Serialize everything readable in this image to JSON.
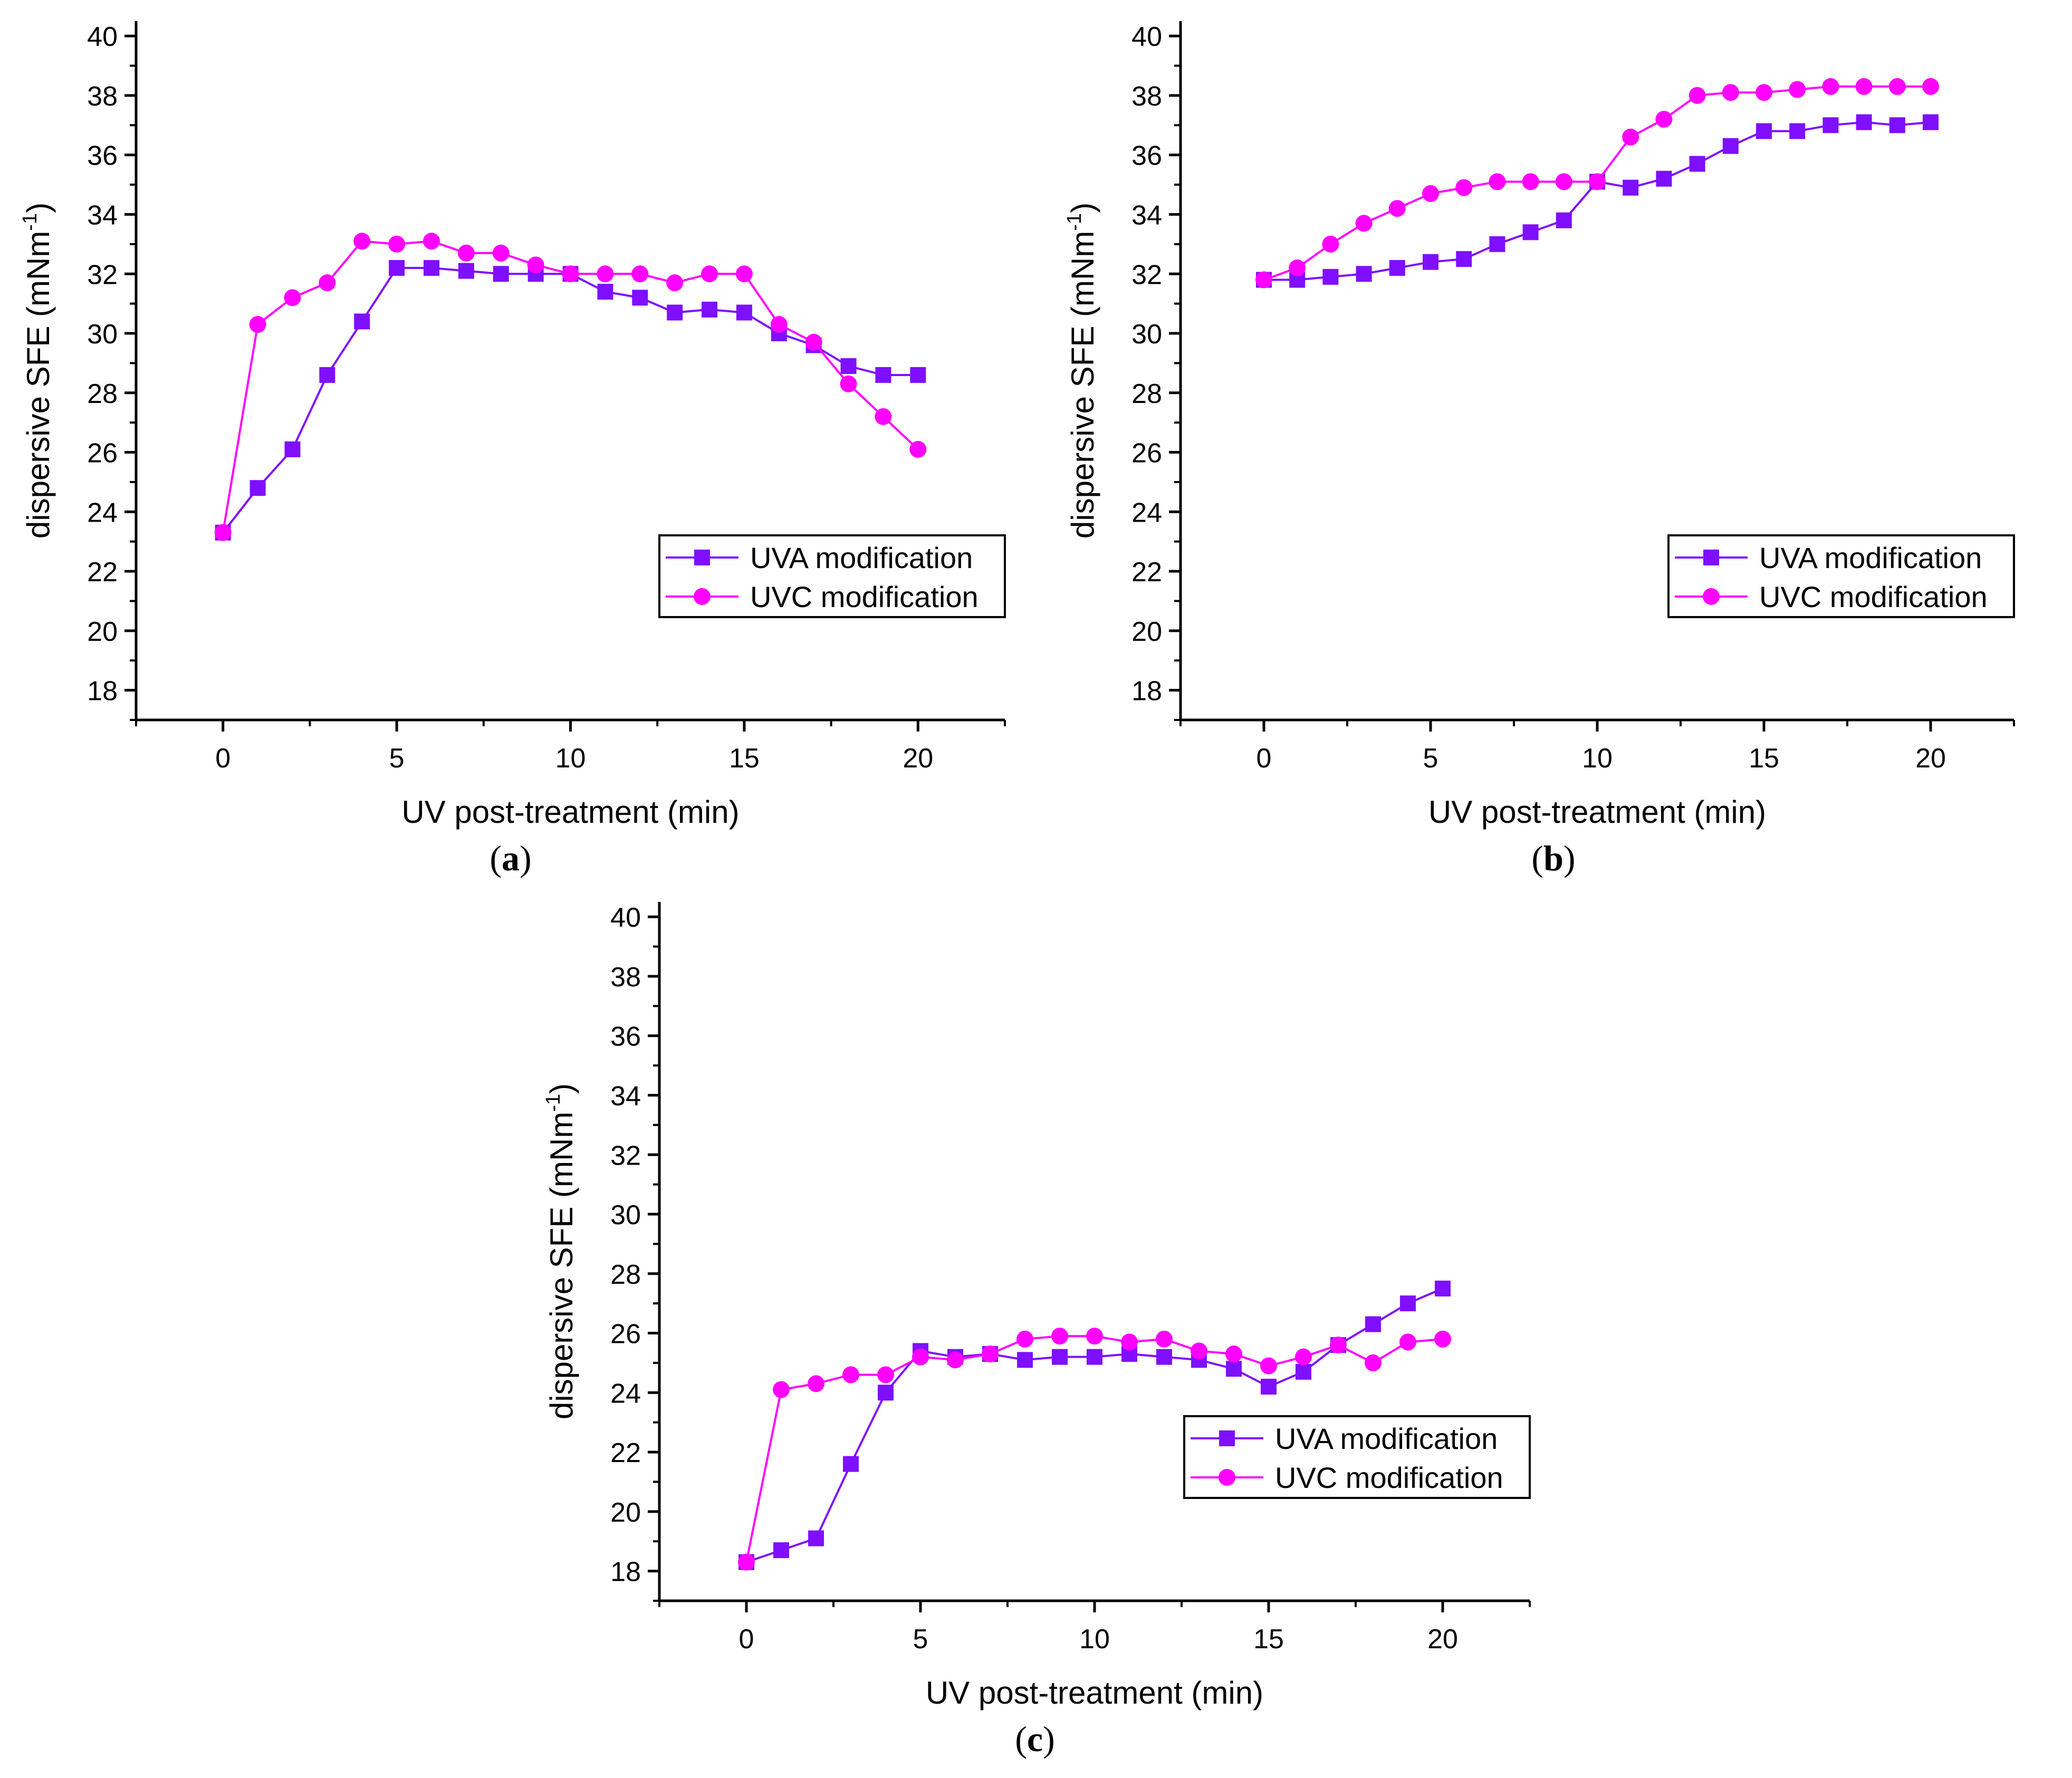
{
  "colors": {
    "uva": "#7f0fff",
    "uvc": "#ff00ff",
    "axis": "#000000"
  },
  "chart_data": [
    {
      "type": "line",
      "caption_letter": "a",
      "xlabel": "UV post-treatment (min)",
      "ylabel_main": "dispersive SFE (mNm",
      "ylabel_sup": "-1",
      "ylabel_close": ")",
      "xlim": [
        -2.5,
        22.5
      ],
      "ylim": [
        17,
        40.5
      ],
      "xticks": [
        0,
        5,
        10,
        15,
        20
      ],
      "yticks": [
        18,
        20,
        22,
        24,
        26,
        28,
        30,
        32,
        34,
        36,
        38,
        40
      ],
      "legend_position": "bottom-right",
      "x": [
        0,
        1,
        2,
        3,
        4,
        5,
        6,
        7,
        8,
        9,
        10,
        11,
        12,
        13,
        14,
        15,
        16,
        17,
        18,
        19,
        20
      ],
      "series": [
        {
          "name": "UVA modification",
          "marker": "square",
          "color_key": "uva",
          "values": [
            23.3,
            24.8,
            26.1,
            28.6,
            30.4,
            32.2,
            32.2,
            32.1,
            32.0,
            32.0,
            32.0,
            31.4,
            31.2,
            30.7,
            30.8,
            30.7,
            30.0,
            29.6,
            28.9,
            28.6,
            28.6
          ]
        },
        {
          "name": "UVC modification",
          "marker": "circle",
          "color_key": "uvc",
          "values": [
            23.3,
            30.3,
            31.2,
            31.7,
            33.1,
            33.0,
            33.1,
            32.7,
            32.7,
            32.3,
            32.0,
            32.0,
            32.0,
            31.7,
            32.0,
            32.0,
            30.3,
            29.7,
            28.3,
            27.2,
            26.1
          ]
        }
      ]
    },
    {
      "type": "line",
      "caption_letter": "b",
      "xlabel": "UV post-treatment (min)",
      "ylabel_main": "dispersive SFE (mNm",
      "ylabel_sup": "-1",
      "ylabel_close": ")",
      "xlim": [
        -2.5,
        22.5
      ],
      "ylim": [
        17,
        40.5
      ],
      "xticks": [
        0,
        5,
        10,
        15,
        20
      ],
      "yticks": [
        18,
        20,
        22,
        24,
        26,
        28,
        30,
        32,
        34,
        36,
        38,
        40
      ],
      "legend_position": "bottom-right",
      "x": [
        0,
        1,
        2,
        3,
        4,
        5,
        6,
        7,
        8,
        9,
        10,
        11,
        12,
        13,
        14,
        15,
        16,
        17,
        18,
        19,
        20
      ],
      "series": [
        {
          "name": "UVA modification",
          "marker": "square",
          "color_key": "uva",
          "values": [
            31.8,
            31.8,
            31.9,
            32.0,
            32.2,
            32.4,
            32.5,
            33.0,
            33.4,
            33.8,
            35.1,
            34.9,
            35.2,
            35.7,
            36.3,
            36.8,
            36.8,
            37.0,
            37.1,
            37.0,
            37.1
          ]
        },
        {
          "name": "UVC modification",
          "marker": "circle",
          "color_key": "uvc",
          "values": [
            31.8,
            32.2,
            33.0,
            33.7,
            34.2,
            34.7,
            34.9,
            35.1,
            35.1,
            35.1,
            35.1,
            36.6,
            37.2,
            38.0,
            38.1,
            38.1,
            38.2,
            38.3,
            38.3,
            38.3,
            38.3
          ]
        }
      ]
    },
    {
      "type": "line",
      "caption_letter": "c",
      "xlabel": "UV post-treatment (min)",
      "ylabel_main": "dispersive SFE (mNm",
      "ylabel_sup": "-1",
      "ylabel_close": ")",
      "xlim": [
        -2.5,
        22.5
      ],
      "ylim": [
        17,
        40.5
      ],
      "xticks": [
        0,
        5,
        10,
        15,
        20
      ],
      "yticks": [
        18,
        20,
        22,
        24,
        26,
        28,
        30,
        32,
        34,
        36,
        38,
        40
      ],
      "legend_position": "bottom-right",
      "x": [
        0,
        1,
        2,
        3,
        4,
        5,
        6,
        7,
        8,
        9,
        10,
        11,
        12,
        13,
        14,
        15,
        16,
        17,
        18,
        19,
        20
      ],
      "series": [
        {
          "name": "UVA modification",
          "marker": "square",
          "color_key": "uva",
          "values": [
            18.3,
            18.7,
            19.1,
            21.6,
            24.0,
            25.4,
            25.2,
            25.3,
            25.1,
            25.2,
            25.2,
            25.3,
            25.2,
            25.1,
            24.8,
            24.2,
            24.7,
            25.6,
            26.3,
            27.0,
            27.5
          ]
        },
        {
          "name": "UVC modification",
          "marker": "circle",
          "color_key": "uvc",
          "values": [
            18.3,
            24.1,
            24.3,
            24.6,
            24.6,
            25.2,
            25.1,
            25.3,
            25.8,
            25.9,
            25.9,
            25.7,
            25.8,
            25.4,
            25.3,
            24.9,
            25.2,
            25.6,
            25.0,
            25.7,
            25.8
          ]
        }
      ]
    }
  ]
}
